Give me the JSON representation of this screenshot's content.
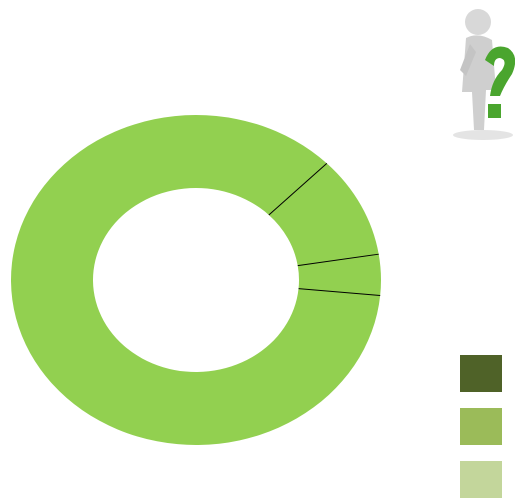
{
  "chart_data": {
    "type": "donut",
    "categories": [
      null,
      null,
      null
    ],
    "values": [
      10,
      4,
      86
    ],
    "start_angle": 45,
    "color": "#92d050",
    "divider_color": "#000000",
    "legend_colors": [
      "#4f6228",
      "#9bbb59",
      "#c3d69b"
    ]
  }
}
